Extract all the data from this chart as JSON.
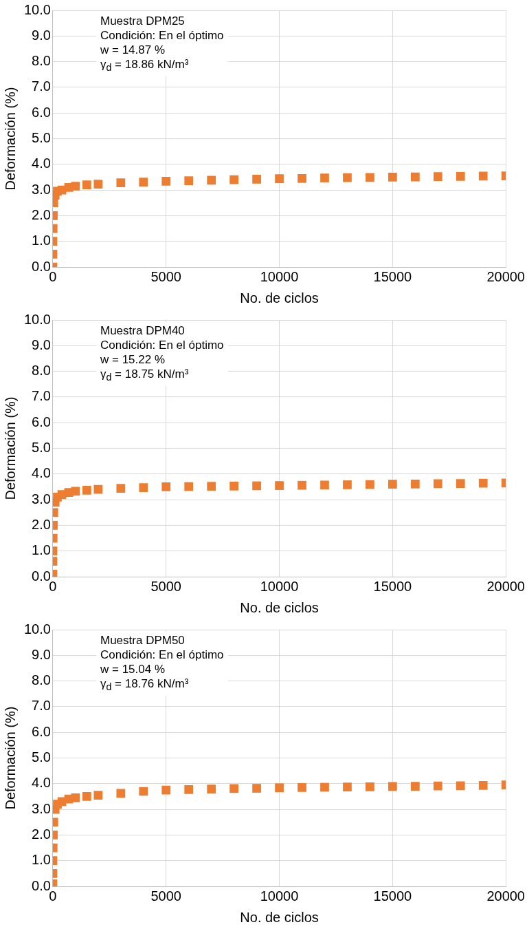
{
  "chart_data": [
    {
      "type": "scatter",
      "xlabel": "No. de ciclos",
      "ylabel": "Deformación (%)",
      "annotations": [
        "Muestra DPM25",
        "Condición:  En el óptimo",
        "w = 14.87 %",
        "γ$_{d}$ = 18.86 kN/m³"
      ],
      "x": [
        0,
        0,
        0,
        10,
        20,
        40,
        100,
        200,
        400,
        700,
        1000,
        1500,
        2000,
        3000,
        4000,
        5000,
        6000,
        7000,
        8000,
        9000,
        10000,
        11000,
        12000,
        13000,
        14000,
        15000,
        16000,
        17000,
        18000,
        19000,
        20000
      ],
      "series": [
        {
          "color": "#ed7d31",
          "values": [
            0.0,
            0.5,
            1.0,
            1.5,
            2.0,
            2.5,
            2.8,
            2.95,
            3.0,
            3.1,
            3.15,
            3.2,
            3.23,
            3.28,
            3.31,
            3.34,
            3.36,
            3.38,
            3.4,
            3.42,
            3.44,
            3.45,
            3.47,
            3.48,
            3.49,
            3.5,
            3.51,
            3.52,
            3.53,
            3.54,
            3.55
          ]
        }
      ],
      "xlim": [
        0,
        20000
      ],
      "xticks": [
        0,
        5000,
        10000,
        15000,
        20000
      ],
      "ylim": [
        0,
        10
      ],
      "yticks": [
        {
          "value": 0,
          "label": "0.0"
        },
        {
          "value": 1,
          "label": "1.0"
        },
        {
          "value": 2,
          "label": "2.0"
        },
        {
          "value": 3,
          "label": "3.0"
        },
        {
          "value": 4,
          "label": "4.0"
        },
        {
          "value": 5,
          "label": "5.0"
        },
        {
          "value": 6,
          "label": "6.0"
        },
        {
          "value": 7,
          "label": "7.0"
        },
        {
          "value": 8,
          "label": "8.0"
        },
        {
          "value": 9,
          "label": "9.0"
        },
        {
          "value": 10,
          "label": "10.0"
        }
      ],
      "grid": true,
      "marker": "square",
      "legend": false
    },
    {
      "type": "scatter",
      "xlabel": "No. de ciclos",
      "ylabel": "Deformación (%)",
      "annotations": [
        "Muestra DPM40",
        "Condición:  En el óptimo",
        "w = 15.22 %",
        "γ$_{d}$ = 18.75 kN/m³"
      ],
      "x": [
        0,
        0,
        0,
        10,
        20,
        40,
        100,
        200,
        400,
        700,
        1000,
        1500,
        2000,
        3000,
        4000,
        5000,
        6000,
        7000,
        8000,
        9000,
        10000,
        11000,
        12000,
        13000,
        14000,
        15000,
        16000,
        17000,
        18000,
        19000,
        20000
      ],
      "series": [
        {
          "color": "#ed7d31",
          "values": [
            0.1,
            0.6,
            1.0,
            1.5,
            2.0,
            2.5,
            2.9,
            3.1,
            3.2,
            3.28,
            3.33,
            3.37,
            3.4,
            3.44,
            3.47,
            3.5,
            3.51,
            3.52,
            3.53,
            3.54,
            3.55,
            3.56,
            3.57,
            3.58,
            3.59,
            3.6,
            3.61,
            3.62,
            3.63,
            3.64,
            3.65
          ]
        }
      ],
      "xlim": [
        0,
        20000
      ],
      "xticks": [
        0,
        5000,
        10000,
        15000,
        20000
      ],
      "ylim": [
        0,
        10
      ],
      "yticks": [
        {
          "value": 0,
          "label": "0.0"
        },
        {
          "value": 1,
          "label": "1.0"
        },
        {
          "value": 2,
          "label": "2.0"
        },
        {
          "value": 3,
          "label": "3.0"
        },
        {
          "value": 4,
          "label": "4.0"
        },
        {
          "value": 5,
          "label": "5.0"
        },
        {
          "value": 6,
          "label": "6.0"
        },
        {
          "value": 7,
          "label": "7.0"
        },
        {
          "value": 8,
          "label": "8.0"
        },
        {
          "value": 9,
          "label": "9.0"
        },
        {
          "value": 10,
          "label": "10.0"
        }
      ],
      "grid": true,
      "marker": "square",
      "legend": false
    },
    {
      "type": "scatter",
      "xlabel": "No. de ciclos",
      "ylabel": "Deformación (%)",
      "annotations": [
        "Muestra DPM50",
        "Condición:  En el óptimo",
        "w = 15.04 %",
        "γ$_{d}$ = 18.76 kN/m³"
      ],
      "x": [
        0,
        0,
        0,
        10,
        20,
        40,
        100,
        200,
        400,
        700,
        1000,
        1500,
        2000,
        3000,
        4000,
        5000,
        6000,
        7000,
        8000,
        9000,
        10000,
        11000,
        12000,
        13000,
        14000,
        15000,
        16000,
        17000,
        18000,
        19000,
        20000
      ],
      "series": [
        {
          "color": "#ed7d31",
          "values": [
            0.1,
            0.5,
            1.0,
            1.5,
            2.0,
            2.5,
            3.0,
            3.2,
            3.3,
            3.4,
            3.45,
            3.5,
            3.55,
            3.62,
            3.7,
            3.75,
            3.77,
            3.79,
            3.81,
            3.82,
            3.84,
            3.85,
            3.86,
            3.87,
            3.88,
            3.89,
            3.9,
            3.91,
            3.92,
            3.93,
            3.95
          ]
        }
      ],
      "xlim": [
        0,
        20000
      ],
      "xticks": [
        0,
        5000,
        10000,
        15000,
        20000
      ],
      "ylim": [
        0,
        10
      ],
      "yticks": [
        {
          "value": 0,
          "label": "0.0"
        },
        {
          "value": 1,
          "label": "1.0"
        },
        {
          "value": 2,
          "label": "2.0"
        },
        {
          "value": 3,
          "label": "3.0"
        },
        {
          "value": 4,
          "label": "4.0"
        },
        {
          "value": 5,
          "label": "5.0"
        },
        {
          "value": 6,
          "label": "6.0"
        },
        {
          "value": 7,
          "label": "7.0"
        },
        {
          "value": 8,
          "label": "8.0"
        },
        {
          "value": 9,
          "label": "9.0"
        },
        {
          "value": 10,
          "label": "10.0"
        }
      ],
      "grid": true,
      "marker": "square",
      "legend": false
    }
  ]
}
